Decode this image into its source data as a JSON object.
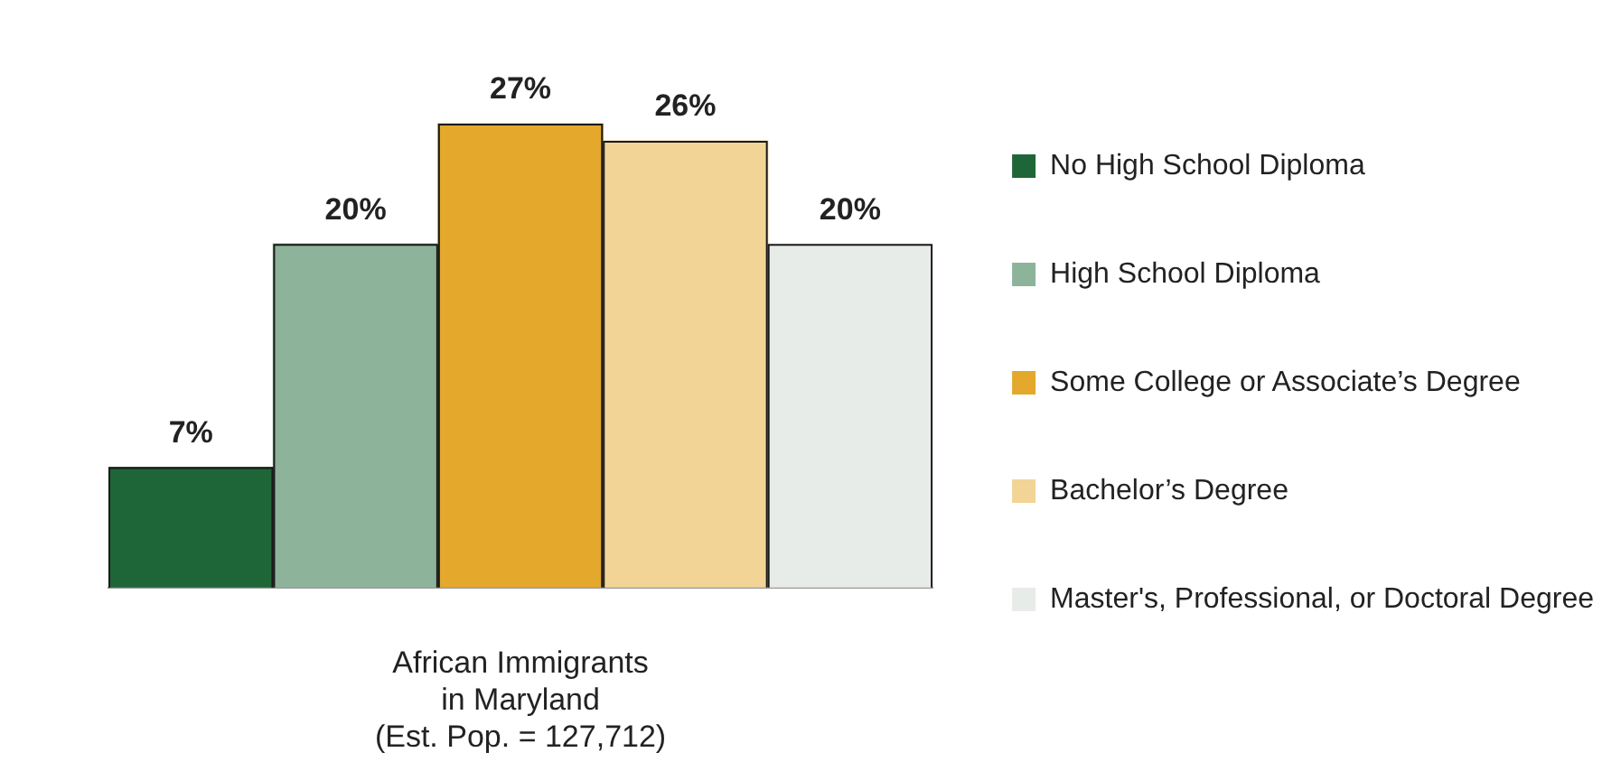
{
  "chart_data": {
    "type": "bar",
    "stacked": true,
    "categories": [
      null,
      null,
      null,
      null,
      null
    ],
    "series": [
      {
        "name": "No High School Diploma",
        "color": "#1e6637",
        "values": [
          7,
          null,
          null,
          null,
          null
        ],
        "value_labels": [
          "7%",
          null,
          null,
          null,
          null
        ]
      },
      {
        "name": "High School Diploma",
        "color": "#8db39a",
        "values": [
          null,
          20,
          null,
          null,
          null
        ],
        "value_labels": [
          null,
          "20%",
          null,
          null,
          null
        ]
      },
      {
        "name": "Some College or Associate’s Degree",
        "color": "#e3a82c",
        "values": [
          null,
          null,
          27,
          null,
          null
        ],
        "value_labels": [
          null,
          null,
          "27%",
          null,
          null
        ]
      },
      {
        "name": "Bachelor’s Degree",
        "color": "#f2d496",
        "values": [
          null,
          null,
          null,
          26,
          null
        ],
        "value_labels": [
          null,
          null,
          null,
          "26%",
          null
        ]
      },
      {
        "name": "Master's, Professional, or Doctoral Degree",
        "color": "#e8ece8",
        "values": [
          null,
          null,
          null,
          null,
          20
        ],
        "value_labels": [
          null,
          null,
          null,
          null,
          "20%"
        ]
      }
    ],
    "xlabel": "African Immigrants\nin Maryland\n(Est. Pop. = 127,712)",
    "legend": "right",
    "grid": false
  }
}
